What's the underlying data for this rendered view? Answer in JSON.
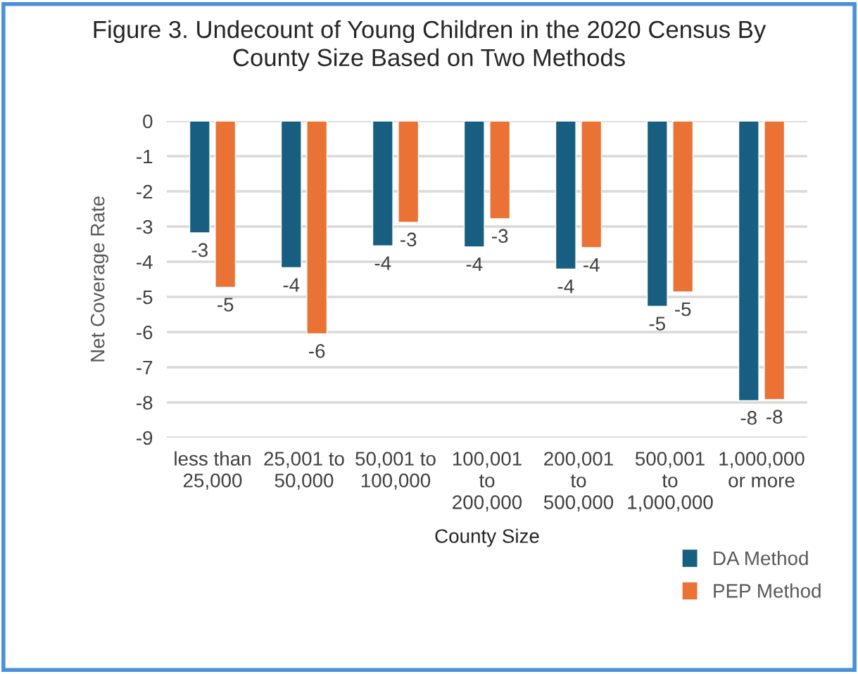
{
  "chart_data": {
    "type": "bar",
    "title": "Figure 3. Undecount of Young Children in the 2020 Census By\nCounty Size Based on Two Methods",
    "xlabel": "County Size",
    "ylabel": "Net Coverage Rate",
    "categories": [
      "less than\n25,000",
      "25,001 to\n50,000",
      "50,001 to\n100,000",
      "100,001\nto\n200,000",
      "200,001\nto\n500,000",
      "500,001\nto\n1,000,000",
      "1,000,000\nor more"
    ],
    "series": [
      {
        "name": "DA Method",
        "color": "#175e80",
        "values": [
          -3.18,
          -4.17,
          -3.55,
          -3.58,
          -4.21,
          -5.27,
          -7.95
        ],
        "value_labels": [
          "-3",
          "-4",
          "-4",
          "-4",
          "-4",
          "-5",
          "-8"
        ]
      },
      {
        "name": "PEP Method",
        "color": "#e97234",
        "values": [
          -4.73,
          -6.05,
          -2.88,
          -2.78,
          -3.6,
          -4.86,
          -7.92
        ],
        "value_labels": [
          "-5",
          "-6",
          "-3",
          "-3",
          "-4",
          "-5",
          "-8"
        ]
      }
    ],
    "ylim": [
      -9,
      0
    ],
    "yticks": [
      0,
      -1,
      -2,
      -3,
      -4,
      -5,
      -6,
      -7,
      -8,
      -9
    ],
    "grid": "y",
    "legend": "bottom right"
  }
}
